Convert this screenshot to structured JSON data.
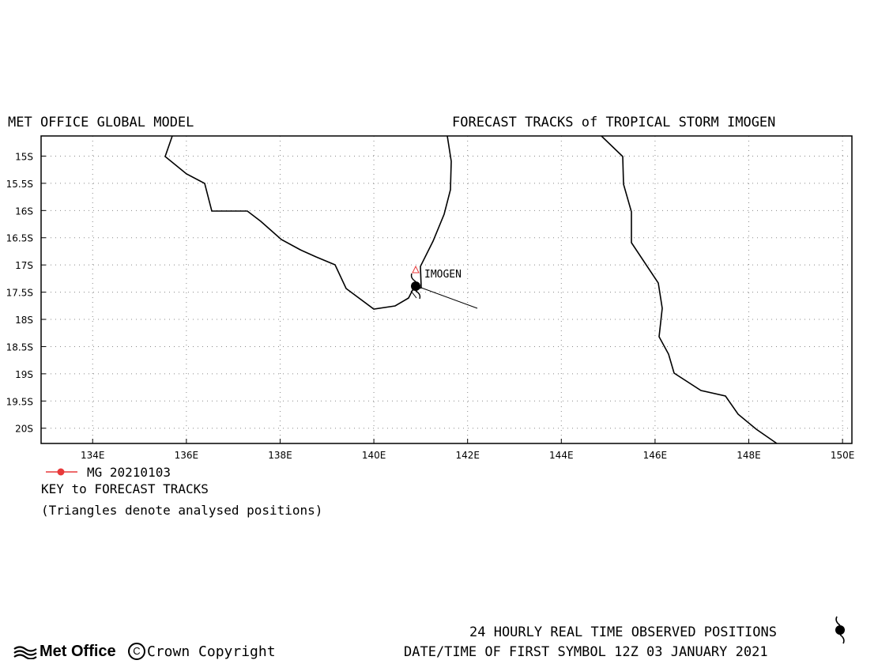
{
  "header": {
    "model": "MET OFFICE GLOBAL MODEL",
    "title": "FORECAST TRACKS of TROPICAL STORM IMOGEN"
  },
  "map": {
    "lat_labels": [
      "15S",
      "15.5S",
      "16S",
      "16.5S",
      "17S",
      "17.5S",
      "18S",
      "18.5S",
      "19S",
      "19.5S",
      "20S"
    ],
    "lon_labels": [
      "134E",
      "136E",
      "138E",
      "140E",
      "142E",
      "144E",
      "146E",
      "148E",
      "150E"
    ],
    "lon_range": [
      132.9,
      150.2
    ],
    "lat_range": [
      -14.63,
      -20.28
    ],
    "storm_label": "IMOGEN",
    "colors": {
      "coast": "#000000",
      "track": "#e8393a",
      "grid": "#888888",
      "analysis": "#e8393a"
    }
  },
  "legend": {
    "series_label": "MG 20210103",
    "key_title": "KEY to FORECAST TRACKS",
    "key_note": "(Triangles denote analysed positions)"
  },
  "footer": {
    "observed": "24 HOURLY REAL TIME OBSERVED POSITIONS",
    "first_symbol": "DATE/TIME OF FIRST SYMBOL 12Z 03 JANUARY 2021",
    "logo": "Met Office",
    "copyright": "Crown Copyright",
    "copyright_symbol": "C"
  }
}
